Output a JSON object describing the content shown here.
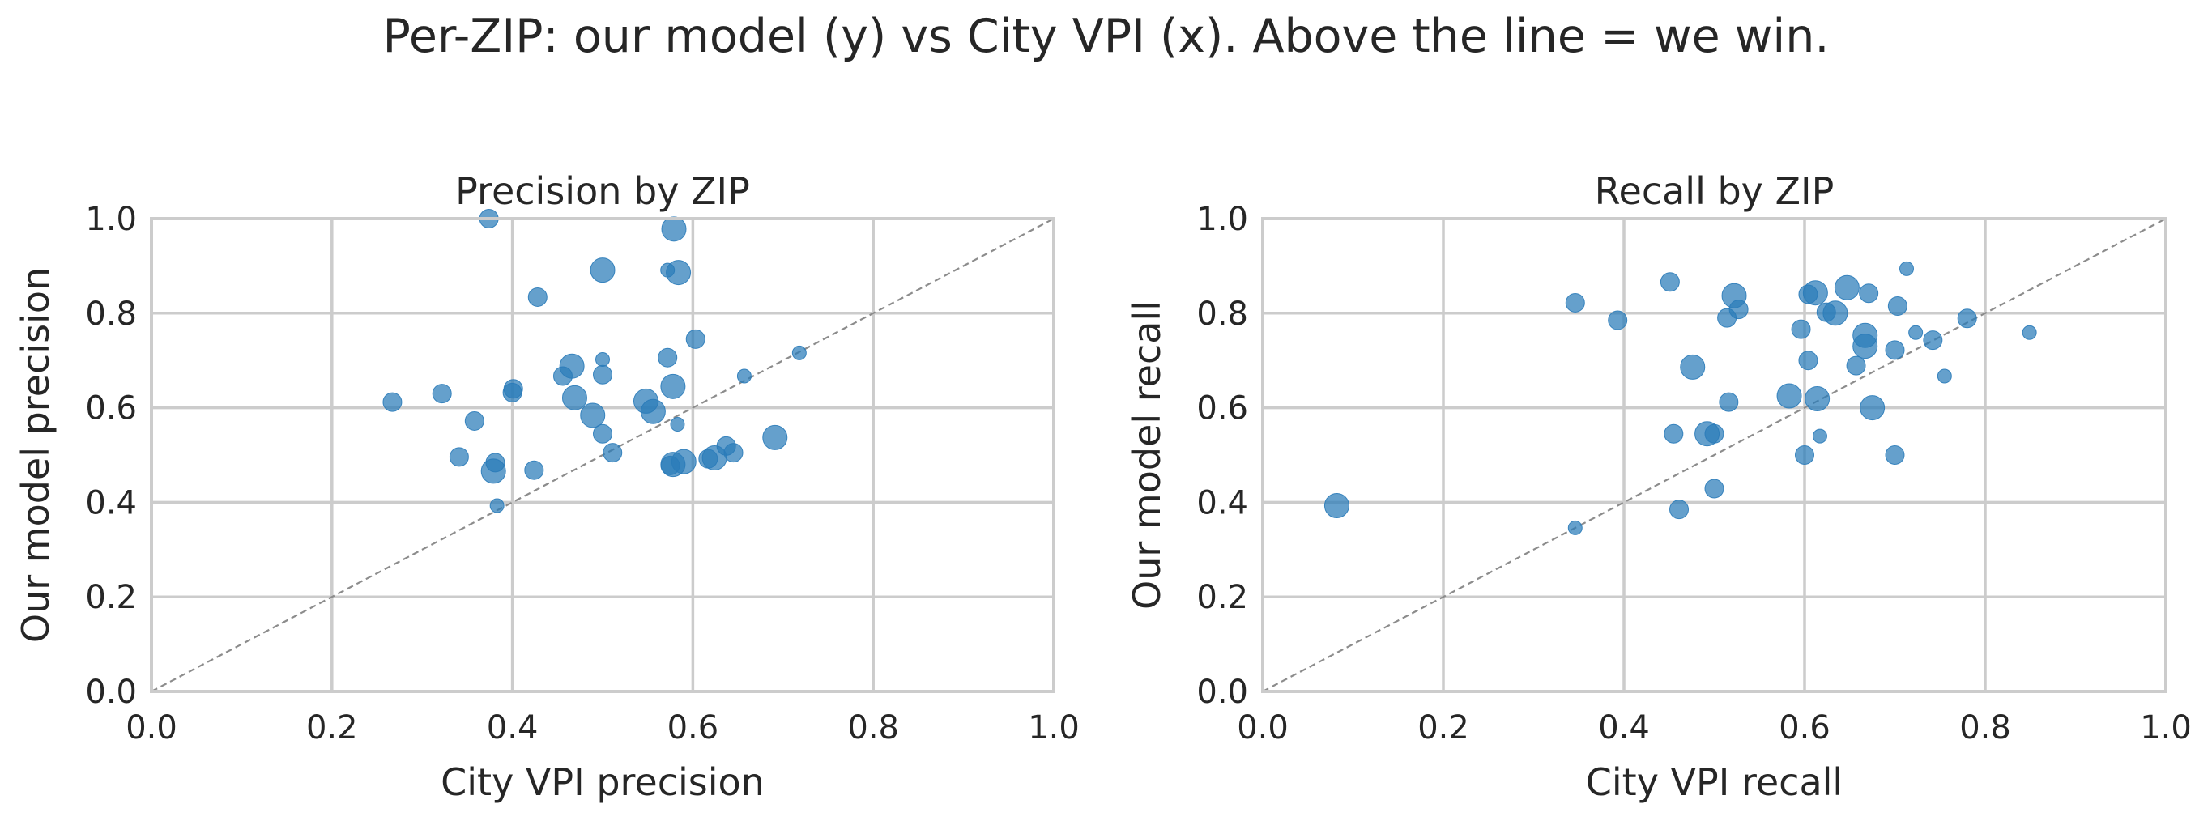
{
  "suptitle": "Per-ZIP: our model (y) vs City VPI (x). Above the line = we win.",
  "colors": {
    "points": "#2a7bb9",
    "grid": "#cccccc",
    "spine": "#cccccc",
    "diagonal": "#8c8c8c",
    "text": "#262626"
  },
  "chart_data": [
    {
      "type": "scatter",
      "title": "Precision by ZIP",
      "xlabel": "City VPI precision",
      "ylabel": "Our model precision",
      "xlim": [
        0,
        1
      ],
      "ylim": [
        0,
        1
      ],
      "xticks": [
        "0.0",
        "0.2",
        "0.4",
        "0.6",
        "0.8",
        "1.0"
      ],
      "yticks": [
        "0.0",
        "0.2",
        "0.4",
        "0.6",
        "0.8",
        "1.0"
      ],
      "grid": true,
      "reference_line": "y = x (dashed)",
      "points": [
        {
          "x": 0.374,
          "y": 1.0,
          "s": 2
        },
        {
          "x": 0.579,
          "y": 0.978,
          "s": 3
        },
        {
          "x": 0.5,
          "y": 0.891,
          "s": 3
        },
        {
          "x": 0.572,
          "y": 0.891,
          "s": 1
        },
        {
          "x": 0.584,
          "y": 0.886,
          "s": 3
        },
        {
          "x": 0.428,
          "y": 0.834,
          "s": 2
        },
        {
          "x": 0.603,
          "y": 0.745,
          "s": 2
        },
        {
          "x": 0.718,
          "y": 0.716,
          "s": 1
        },
        {
          "x": 0.572,
          "y": 0.706,
          "s": 2
        },
        {
          "x": 0.5,
          "y": 0.702,
          "s": 1
        },
        {
          "x": 0.466,
          "y": 0.688,
          "s": 3
        },
        {
          "x": 0.5,
          "y": 0.67,
          "s": 2
        },
        {
          "x": 0.456,
          "y": 0.667,
          "s": 2
        },
        {
          "x": 0.657,
          "y": 0.667,
          "s": 1
        },
        {
          "x": 0.578,
          "y": 0.645,
          "s": 3
        },
        {
          "x": 0.401,
          "y": 0.64,
          "s": 2
        },
        {
          "x": 0.4,
          "y": 0.632,
          "s": 2
        },
        {
          "x": 0.322,
          "y": 0.63,
          "s": 2
        },
        {
          "x": 0.469,
          "y": 0.621,
          "s": 3
        },
        {
          "x": 0.267,
          "y": 0.612,
          "s": 2
        },
        {
          "x": 0.548,
          "y": 0.614,
          "s": 3
        },
        {
          "x": 0.556,
          "y": 0.592,
          "s": 3
        },
        {
          "x": 0.489,
          "y": 0.584,
          "s": 3
        },
        {
          "x": 0.358,
          "y": 0.572,
          "s": 2
        },
        {
          "x": 0.583,
          "y": 0.565,
          "s": 1
        },
        {
          "x": 0.5,
          "y": 0.545,
          "s": 2
        },
        {
          "x": 0.691,
          "y": 0.537,
          "s": 3
        },
        {
          "x": 0.637,
          "y": 0.519,
          "s": 2
        },
        {
          "x": 0.511,
          "y": 0.505,
          "s": 2
        },
        {
          "x": 0.645,
          "y": 0.505,
          "s": 2
        },
        {
          "x": 0.341,
          "y": 0.496,
          "s": 2
        },
        {
          "x": 0.624,
          "y": 0.494,
          "s": 3
        },
        {
          "x": 0.617,
          "y": 0.492,
          "s": 2
        },
        {
          "x": 0.59,
          "y": 0.486,
          "s": 3
        },
        {
          "x": 0.381,
          "y": 0.484,
          "s": 2
        },
        {
          "x": 0.578,
          "y": 0.48,
          "s": 3
        },
        {
          "x": 0.575,
          "y": 0.478,
          "s": 2
        },
        {
          "x": 0.424,
          "y": 0.468,
          "s": 2
        },
        {
          "x": 0.379,
          "y": 0.466,
          "s": 3
        },
        {
          "x": 0.383,
          "y": 0.393,
          "s": 1
        }
      ]
    },
    {
      "type": "scatter",
      "title": "Recall by ZIP",
      "xlabel": "City VPI recall",
      "ylabel": "Our model recall",
      "xlim": [
        0,
        1
      ],
      "ylim": [
        0,
        1
      ],
      "xticks": [
        "0.0",
        "0.2",
        "0.4",
        "0.6",
        "0.8",
        "1.0"
      ],
      "yticks": [
        "0.0",
        "0.2",
        "0.4",
        "0.6",
        "0.8",
        "1.0"
      ],
      "grid": true,
      "reference_line": "y = x (dashed)",
      "points": [
        {
          "x": 0.713,
          "y": 0.894,
          "s": 1
        },
        {
          "x": 0.451,
          "y": 0.866,
          "s": 2
        },
        {
          "x": 0.647,
          "y": 0.854,
          "s": 3
        },
        {
          "x": 0.612,
          "y": 0.843,
          "s": 3
        },
        {
          "x": 0.604,
          "y": 0.84,
          "s": 2
        },
        {
          "x": 0.671,
          "y": 0.842,
          "s": 2
        },
        {
          "x": 0.522,
          "y": 0.837,
          "s": 3
        },
        {
          "x": 0.346,
          "y": 0.822,
          "s": 2
        },
        {
          "x": 0.703,
          "y": 0.815,
          "s": 2
        },
        {
          "x": 0.527,
          "y": 0.808,
          "s": 2
        },
        {
          "x": 0.624,
          "y": 0.802,
          "s": 2
        },
        {
          "x": 0.634,
          "y": 0.8,
          "s": 3
        },
        {
          "x": 0.514,
          "y": 0.79,
          "s": 2
        },
        {
          "x": 0.78,
          "y": 0.789,
          "s": 2
        },
        {
          "x": 0.393,
          "y": 0.785,
          "s": 2
        },
        {
          "x": 0.596,
          "y": 0.766,
          "s": 2
        },
        {
          "x": 0.723,
          "y": 0.759,
          "s": 1
        },
        {
          "x": 0.849,
          "y": 0.759,
          "s": 1
        },
        {
          "x": 0.667,
          "y": 0.753,
          "s": 3
        },
        {
          "x": 0.742,
          "y": 0.743,
          "s": 2
        },
        {
          "x": 0.667,
          "y": 0.73,
          "s": 3
        },
        {
          "x": 0.7,
          "y": 0.722,
          "s": 2
        },
        {
          "x": 0.604,
          "y": 0.7,
          "s": 2
        },
        {
          "x": 0.476,
          "y": 0.686,
          "s": 3
        },
        {
          "x": 0.657,
          "y": 0.689,
          "s": 2
        },
        {
          "x": 0.755,
          "y": 0.667,
          "s": 1
        },
        {
          "x": 0.583,
          "y": 0.625,
          "s": 3
        },
        {
          "x": 0.614,
          "y": 0.619,
          "s": 3
        },
        {
          "x": 0.516,
          "y": 0.612,
          "s": 2
        },
        {
          "x": 0.675,
          "y": 0.6,
          "s": 3
        },
        {
          "x": 0.492,
          "y": 0.545,
          "s": 3
        },
        {
          "x": 0.5,
          "y": 0.545,
          "s": 2
        },
        {
          "x": 0.455,
          "y": 0.545,
          "s": 2
        },
        {
          "x": 0.617,
          "y": 0.54,
          "s": 1
        },
        {
          "x": 0.6,
          "y": 0.5,
          "s": 2
        },
        {
          "x": 0.7,
          "y": 0.5,
          "s": 2
        },
        {
          "x": 0.5,
          "y": 0.429,
          "s": 2
        },
        {
          "x": 0.082,
          "y": 0.393,
          "s": 3
        },
        {
          "x": 0.461,
          "y": 0.385,
          "s": 2
        },
        {
          "x": 0.346,
          "y": 0.346,
          "s": 1
        }
      ]
    }
  ]
}
